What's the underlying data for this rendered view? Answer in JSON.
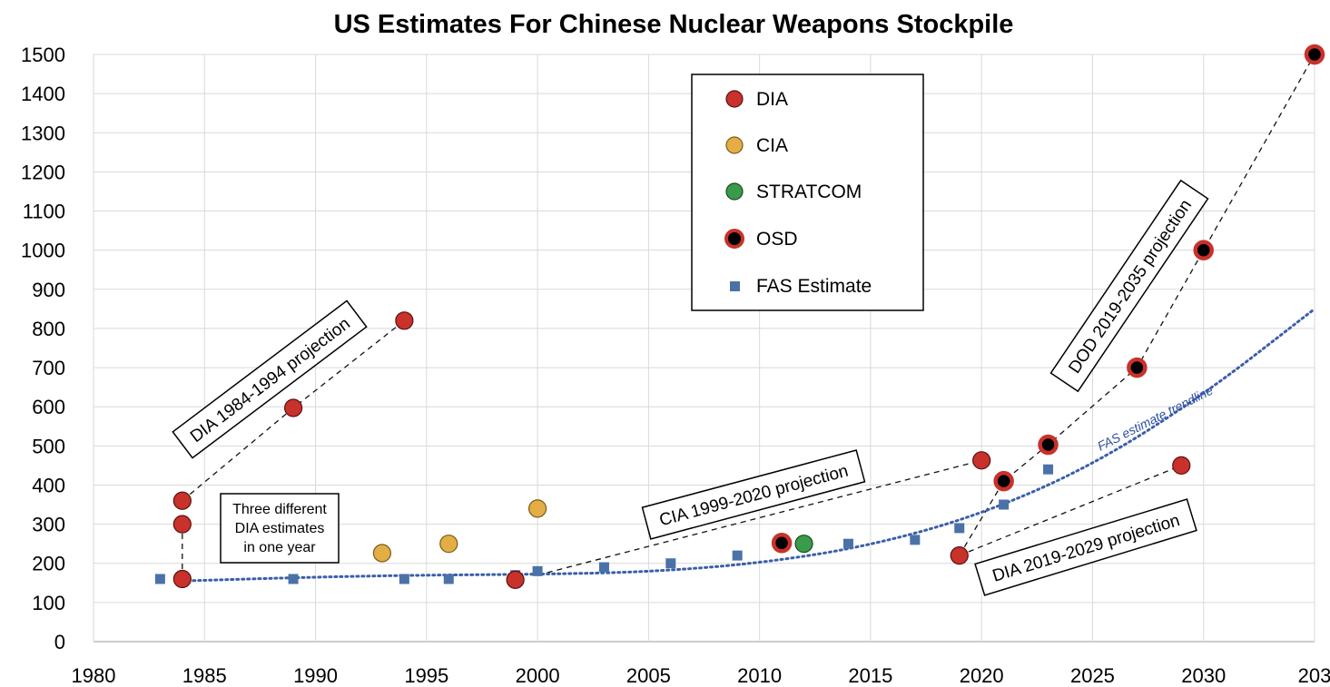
{
  "chart_data": {
    "type": "scatter",
    "title": "US Estimates For Chinese Nuclear Weapons Stockpile",
    "xlabel": "",
    "ylabel": "",
    "xlim": [
      1980,
      2035
    ],
    "ylim": [
      0,
      1500
    ],
    "x_ticks": [
      "1980",
      "1985",
      "1990",
      "1995",
      "2000",
      "2005",
      "2010",
      "2015",
      "2020",
      "2025",
      "2030",
      "203"
    ],
    "y_ticks": [
      "0",
      "100",
      "200",
      "300",
      "400",
      "500",
      "600",
      "700",
      "800",
      "900",
      "1000",
      "1100",
      "1200",
      "1300",
      "1400",
      "1500"
    ],
    "grid": true,
    "legend_position": "top-center",
    "series": [
      {
        "name": "DIA",
        "marker": "circle",
        "color": "#c8322b",
        "points": [
          [
            1984,
            360
          ],
          [
            1984,
            300
          ],
          [
            1984,
            160
          ],
          [
            1989,
            597
          ],
          [
            1994,
            820
          ],
          [
            1999,
            158
          ],
          [
            2020,
            463
          ],
          [
            2019,
            220
          ],
          [
            2029,
            450
          ]
        ]
      },
      {
        "name": "CIA",
        "marker": "circle",
        "color": "#e2ae45",
        "points": [
          [
            1993,
            226
          ],
          [
            1996,
            250
          ],
          [
            2000,
            340
          ]
        ]
      },
      {
        "name": "STRATCOM",
        "marker": "circle",
        "color": "#3a9b4a",
        "points": [
          [
            2012,
            250
          ]
        ]
      },
      {
        "name": "OSD",
        "marker": "ring",
        "color": "#c8322b",
        "points": [
          [
            2011,
            252
          ],
          [
            2021,
            410
          ],
          [
            2023,
            503
          ],
          [
            2027,
            700
          ],
          [
            2030,
            1000
          ],
          [
            2035,
            1500
          ]
        ]
      },
      {
        "name": "FAS Estimate",
        "marker": "square",
        "color": "#4a72a8",
        "points": [
          [
            1983,
            160
          ],
          [
            1989,
            160
          ],
          [
            1994,
            160
          ],
          [
            1996,
            160
          ],
          [
            1999,
            170
          ],
          [
            2000,
            180
          ],
          [
            2003,
            190
          ],
          [
            2006,
            200
          ],
          [
            2009,
            220
          ],
          [
            2014,
            250
          ],
          [
            2017,
            260
          ],
          [
            2019,
            290
          ],
          [
            2021,
            350
          ],
          [
            2023,
            440
          ]
        ]
      }
    ],
    "projection_lines": [
      {
        "points": [
          [
            1984,
            160
          ],
          [
            1984,
            300
          ]
        ]
      },
      {
        "points": [
          [
            1984,
            360
          ],
          [
            1989,
            597
          ],
          [
            1994,
            820
          ]
        ]
      },
      {
        "points": [
          [
            2000,
            170
          ],
          [
            2020,
            463
          ]
        ]
      },
      {
        "points": [
          [
            2019,
            220
          ],
          [
            2021,
            410
          ],
          [
            2023,
            503
          ],
          [
            2027,
            700
          ],
          [
            2030,
            1000
          ],
          [
            2035,
            1500
          ]
        ]
      },
      {
        "points": [
          [
            2019,
            220
          ],
          [
            2029,
            450
          ]
        ]
      }
    ],
    "trendline": {
      "label": "FAS estimate trendline",
      "points": [
        [
          1984,
          155
        ],
        [
          1990,
          165
        ],
        [
          1995,
          170
        ],
        [
          2000,
          172
        ],
        [
          2005,
          178
        ],
        [
          2010,
          200
        ],
        [
          2015,
          245
        ],
        [
          2020,
          325
        ],
        [
          2025,
          450
        ],
        [
          2030,
          630
        ],
        [
          2035,
          850
        ]
      ]
    },
    "annotations": {
      "dia_1984": "DIA 1984-1994 projection",
      "three_dia_lines": [
        "Three different",
        "DIA estimates",
        "in one year"
      ],
      "cia_1999": "CIA 1999-2020 projection",
      "dia_2019": "DIA 2019-2029 projection",
      "dod_2019": "DOD 2019-2035 projection"
    }
  }
}
